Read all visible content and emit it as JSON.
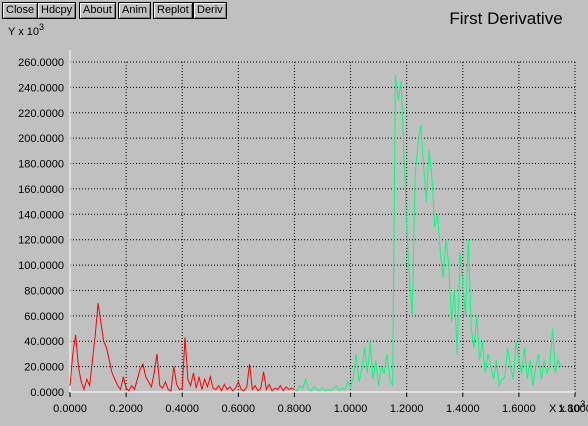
{
  "buttons": [
    "Close",
    "Hdcpy",
    "About",
    "Anim",
    "Replot",
    "Deriv"
  ],
  "chart_data": {
    "type": "line",
    "title": "First Derivative",
    "ylabel": {
      "text": "Y x 10",
      "exponent": "3"
    },
    "xlabel": {
      "text": "X x 10",
      "exponent": "3"
    },
    "xlim": [
      0,
      1.8
    ],
    "ylim": [
      0,
      260
    ],
    "grid": true,
    "xticks": [
      {
        "value": 0,
        "label": "0.0000"
      },
      {
        "value": 0.2,
        "label": "0.2000"
      },
      {
        "value": 0.4,
        "label": "0.4000"
      },
      {
        "value": 0.6,
        "label": "0.6000"
      },
      {
        "value": 0.8,
        "label": "0.8000"
      },
      {
        "value": 1.0,
        "label": "1.0000"
      },
      {
        "value": 1.2,
        "label": "1.2000"
      },
      {
        "value": 1.4,
        "label": "1.4000"
      },
      {
        "value": 1.6,
        "label": "1.6000"
      },
      {
        "value": 1.8,
        "label": "1.8000"
      }
    ],
    "yticks": [
      {
        "value": 0,
        "label": "0.0000"
      },
      {
        "value": 20,
        "label": "20.0000"
      },
      {
        "value": 40,
        "label": "40.0000"
      },
      {
        "value": 60,
        "label": "60.0000"
      },
      {
        "value": 80,
        "label": "80.0000"
      },
      {
        "value": 100,
        "label": "100.0000"
      },
      {
        "value": 120,
        "label": "120.0000"
      },
      {
        "value": 140,
        "label": "140.0000"
      },
      {
        "value": 160,
        "label": "160.0000"
      },
      {
        "value": 180,
        "label": "180.0000"
      },
      {
        "value": 200,
        "label": "200.0000"
      },
      {
        "value": 220,
        "label": "220.0000"
      },
      {
        "value": 240,
        "label": "240.0000"
      },
      {
        "value": 260,
        "label": "260.0000"
      }
    ],
    "series": [
      {
        "color": "#ff0000",
        "x": [
          0.0,
          0.01,
          0.02,
          0.03,
          0.04,
          0.05,
          0.06,
          0.07,
          0.08,
          0.09,
          0.1,
          0.11,
          0.12,
          0.13,
          0.14,
          0.15,
          0.16,
          0.17,
          0.18,
          0.19,
          0.2,
          0.21,
          0.22,
          0.23,
          0.24,
          0.25,
          0.26,
          0.27,
          0.28,
          0.29,
          0.3,
          0.31,
          0.32,
          0.33,
          0.34,
          0.35,
          0.36,
          0.37,
          0.38,
          0.39,
          0.4,
          0.41,
          0.42,
          0.43,
          0.44,
          0.45,
          0.46,
          0.47,
          0.48,
          0.49,
          0.5,
          0.51,
          0.52,
          0.53,
          0.54,
          0.55,
          0.56,
          0.57,
          0.58,
          0.59,
          0.6,
          0.61,
          0.62,
          0.63,
          0.64,
          0.65,
          0.66,
          0.67,
          0.68,
          0.69,
          0.7,
          0.71,
          0.72,
          0.73,
          0.74,
          0.75,
          0.76,
          0.77,
          0.78,
          0.79,
          0.8
        ],
        "values": [
          5,
          30,
          45,
          20,
          8,
          2,
          10,
          5,
          25,
          45,
          70,
          55,
          40,
          35,
          25,
          15,
          10,
          5,
          2,
          12,
          3,
          1,
          5,
          2,
          10,
          18,
          22,
          12,
          8,
          4,
          15,
          30,
          5,
          3,
          8,
          2,
          1,
          20,
          6,
          2,
          3,
          43,
          10,
          5,
          15,
          3,
          12,
          2,
          10,
          4,
          12,
          3,
          2,
          5,
          1,
          6,
          2,
          4,
          1,
          3,
          8,
          2,
          1,
          4,
          22,
          2,
          5,
          1,
          3,
          16,
          2,
          6,
          1,
          3,
          2,
          5,
          1,
          4,
          2,
          3,
          2
        ]
      },
      {
        "color": "#00ff80",
        "x": [
          0.8,
          0.81,
          0.82,
          0.83,
          0.84,
          0.85,
          0.86,
          0.87,
          0.88,
          0.89,
          0.9,
          0.91,
          0.92,
          0.93,
          0.94,
          0.95,
          0.96,
          0.97,
          0.98,
          0.99,
          1.0,
          1.01,
          1.02,
          1.03,
          1.04,
          1.05,
          1.06,
          1.07,
          1.08,
          1.09,
          1.1,
          1.11,
          1.12,
          1.13,
          1.14,
          1.15,
          1.16,
          1.17,
          1.18,
          1.19,
          1.2,
          1.21,
          1.22,
          1.23,
          1.24,
          1.25,
          1.26,
          1.27,
          1.28,
          1.29,
          1.3,
          1.31,
          1.32,
          1.33,
          1.34,
          1.35,
          1.36,
          1.37,
          1.38,
          1.39,
          1.4,
          1.41,
          1.42,
          1.43,
          1.44,
          1.45,
          1.46,
          1.47,
          1.48,
          1.49,
          1.5,
          1.51,
          1.52,
          1.53,
          1.54,
          1.55,
          1.56,
          1.57,
          1.58,
          1.59,
          1.6,
          1.61,
          1.62,
          1.63,
          1.64,
          1.65,
          1.66,
          1.67,
          1.68,
          1.69,
          1.7,
          1.71,
          1.72,
          1.73,
          1.74,
          1.75
        ],
        "values": [
          2,
          1,
          5,
          3,
          10,
          2,
          1,
          4,
          2,
          1,
          3,
          1,
          2,
          1,
          3,
          5,
          1,
          3,
          2,
          8,
          4,
          12,
          30,
          8,
          18,
          35,
          15,
          40,
          10,
          25,
          5,
          20,
          15,
          30,
          10,
          5,
          250,
          230,
          245,
          190,
          130,
          90,
          60,
          170,
          195,
          210,
          180,
          150,
          190,
          170,
          130,
          140,
          110,
          90,
          120,
          100,
          55,
          80,
          30,
          110,
          85,
          60,
          120,
          50,
          35,
          60,
          25,
          40,
          15,
          30,
          20,
          10,
          25,
          5,
          10,
          12,
          35,
          20,
          10,
          40,
          25,
          15,
          35,
          10,
          25,
          5,
          20,
          30,
          10,
          25,
          15,
          20,
          50,
          15,
          25,
          20
        ]
      }
    ]
  }
}
